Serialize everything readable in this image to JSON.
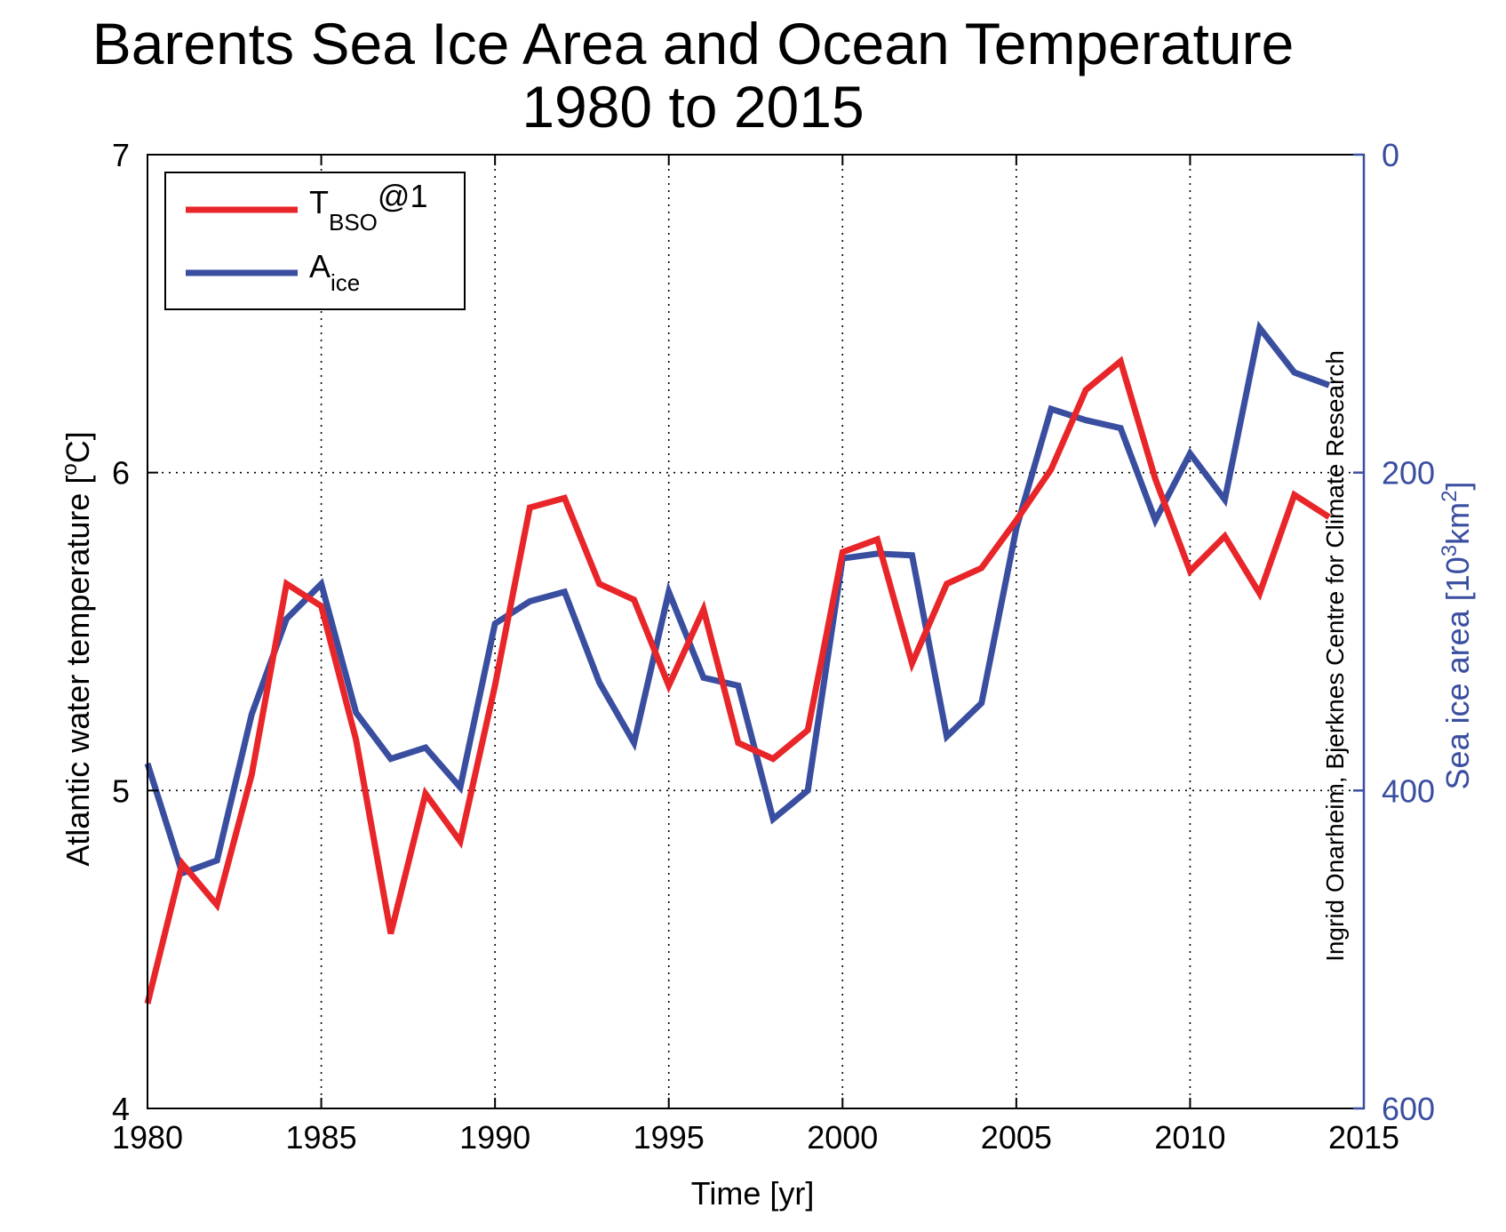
{
  "chart_data": {
    "type": "line",
    "title": "Barents Sea Ice Area and Ocean Temperature",
    "subtitle": "1980 to 2015",
    "xlabel": "Time [yr]",
    "ylabel_left": "Atlantic water temperature [",
    "ylabel_left_sup": "o",
    "ylabel_left_end": "C]",
    "ylabel_right": "Sea ice area [10",
    "ylabel_right_sup1": "3",
    "ylabel_right_mid": "km",
    "ylabel_right_sup2": "2",
    "ylabel_right_end": "]",
    "credit": "Ingrid Onarheim, Bjerknes Centre for Climate Research",
    "xlim": [
      1980,
      2015
    ],
    "ylim_left": [
      4,
      7
    ],
    "ylim_right": [
      0,
      600
    ],
    "right_axis_reversed": true,
    "xticks": [
      "1980",
      "1985",
      "1990",
      "1995",
      "2000",
      "2005",
      "2010",
      "2015"
    ],
    "yticks_left": [
      "4",
      "5",
      "6",
      "7"
    ],
    "yticks_right": [
      "0",
      "200",
      "400",
      "600"
    ],
    "grid": true,
    "legend_position": "top-left",
    "series": [
      {
        "name": "T",
        "name_sub": "BSO",
        "name_suffix": "@1",
        "axis": "left",
        "color": "#e8262a",
        "x": [
          1980,
          1981,
          1982,
          1983,
          1984,
          1985,
          1986,
          1987,
          1988,
          1989,
          1990,
          1991,
          1992,
          1993,
          1994,
          1995,
          1996,
          1997,
          1998,
          1999,
          2000,
          2001,
          2002,
          2003,
          2004,
          2005,
          2006,
          2007,
          2008,
          2009,
          2010,
          2011,
          2012,
          2013,
          2014
        ],
        "values": [
          4.33,
          4.77,
          4.64,
          5.05,
          5.65,
          5.58,
          5.16,
          4.55,
          4.99,
          4.84,
          5.33,
          5.89,
          5.92,
          5.65,
          5.6,
          5.33,
          5.57,
          5.15,
          5.1,
          5.19,
          5.75,
          5.79,
          5.4,
          5.65,
          5.7,
          5.85,
          6.01,
          6.26,
          6.35,
          5.98,
          5.69,
          5.8,
          5.62,
          5.93,
          5.86
        ]
      },
      {
        "name": "A",
        "name_sub": "ice",
        "name_suffix": "",
        "axis": "right",
        "color": "#3a4ea0",
        "x": [
          1980,
          1981,
          1982,
          1983,
          1984,
          1985,
          1986,
          1987,
          1988,
          1989,
          1990,
          1991,
          1992,
          1993,
          1994,
          1995,
          1996,
          1997,
          1998,
          1999,
          2000,
          2001,
          2002,
          2003,
          2004,
          2005,
          2006,
          2007,
          2008,
          2009,
          2010,
          2011,
          2012,
          2013,
          2014
        ],
        "values": [
          383,
          452,
          444,
          352,
          292,
          270,
          351,
          380,
          373,
          398,
          295,
          281,
          275,
          332,
          370,
          275,
          329,
          334,
          418,
          400,
          254,
          251,
          252,
          366,
          345,
          235,
          160,
          167,
          172,
          230,
          188,
          217,
          109,
          137,
          145
        ]
      }
    ]
  }
}
